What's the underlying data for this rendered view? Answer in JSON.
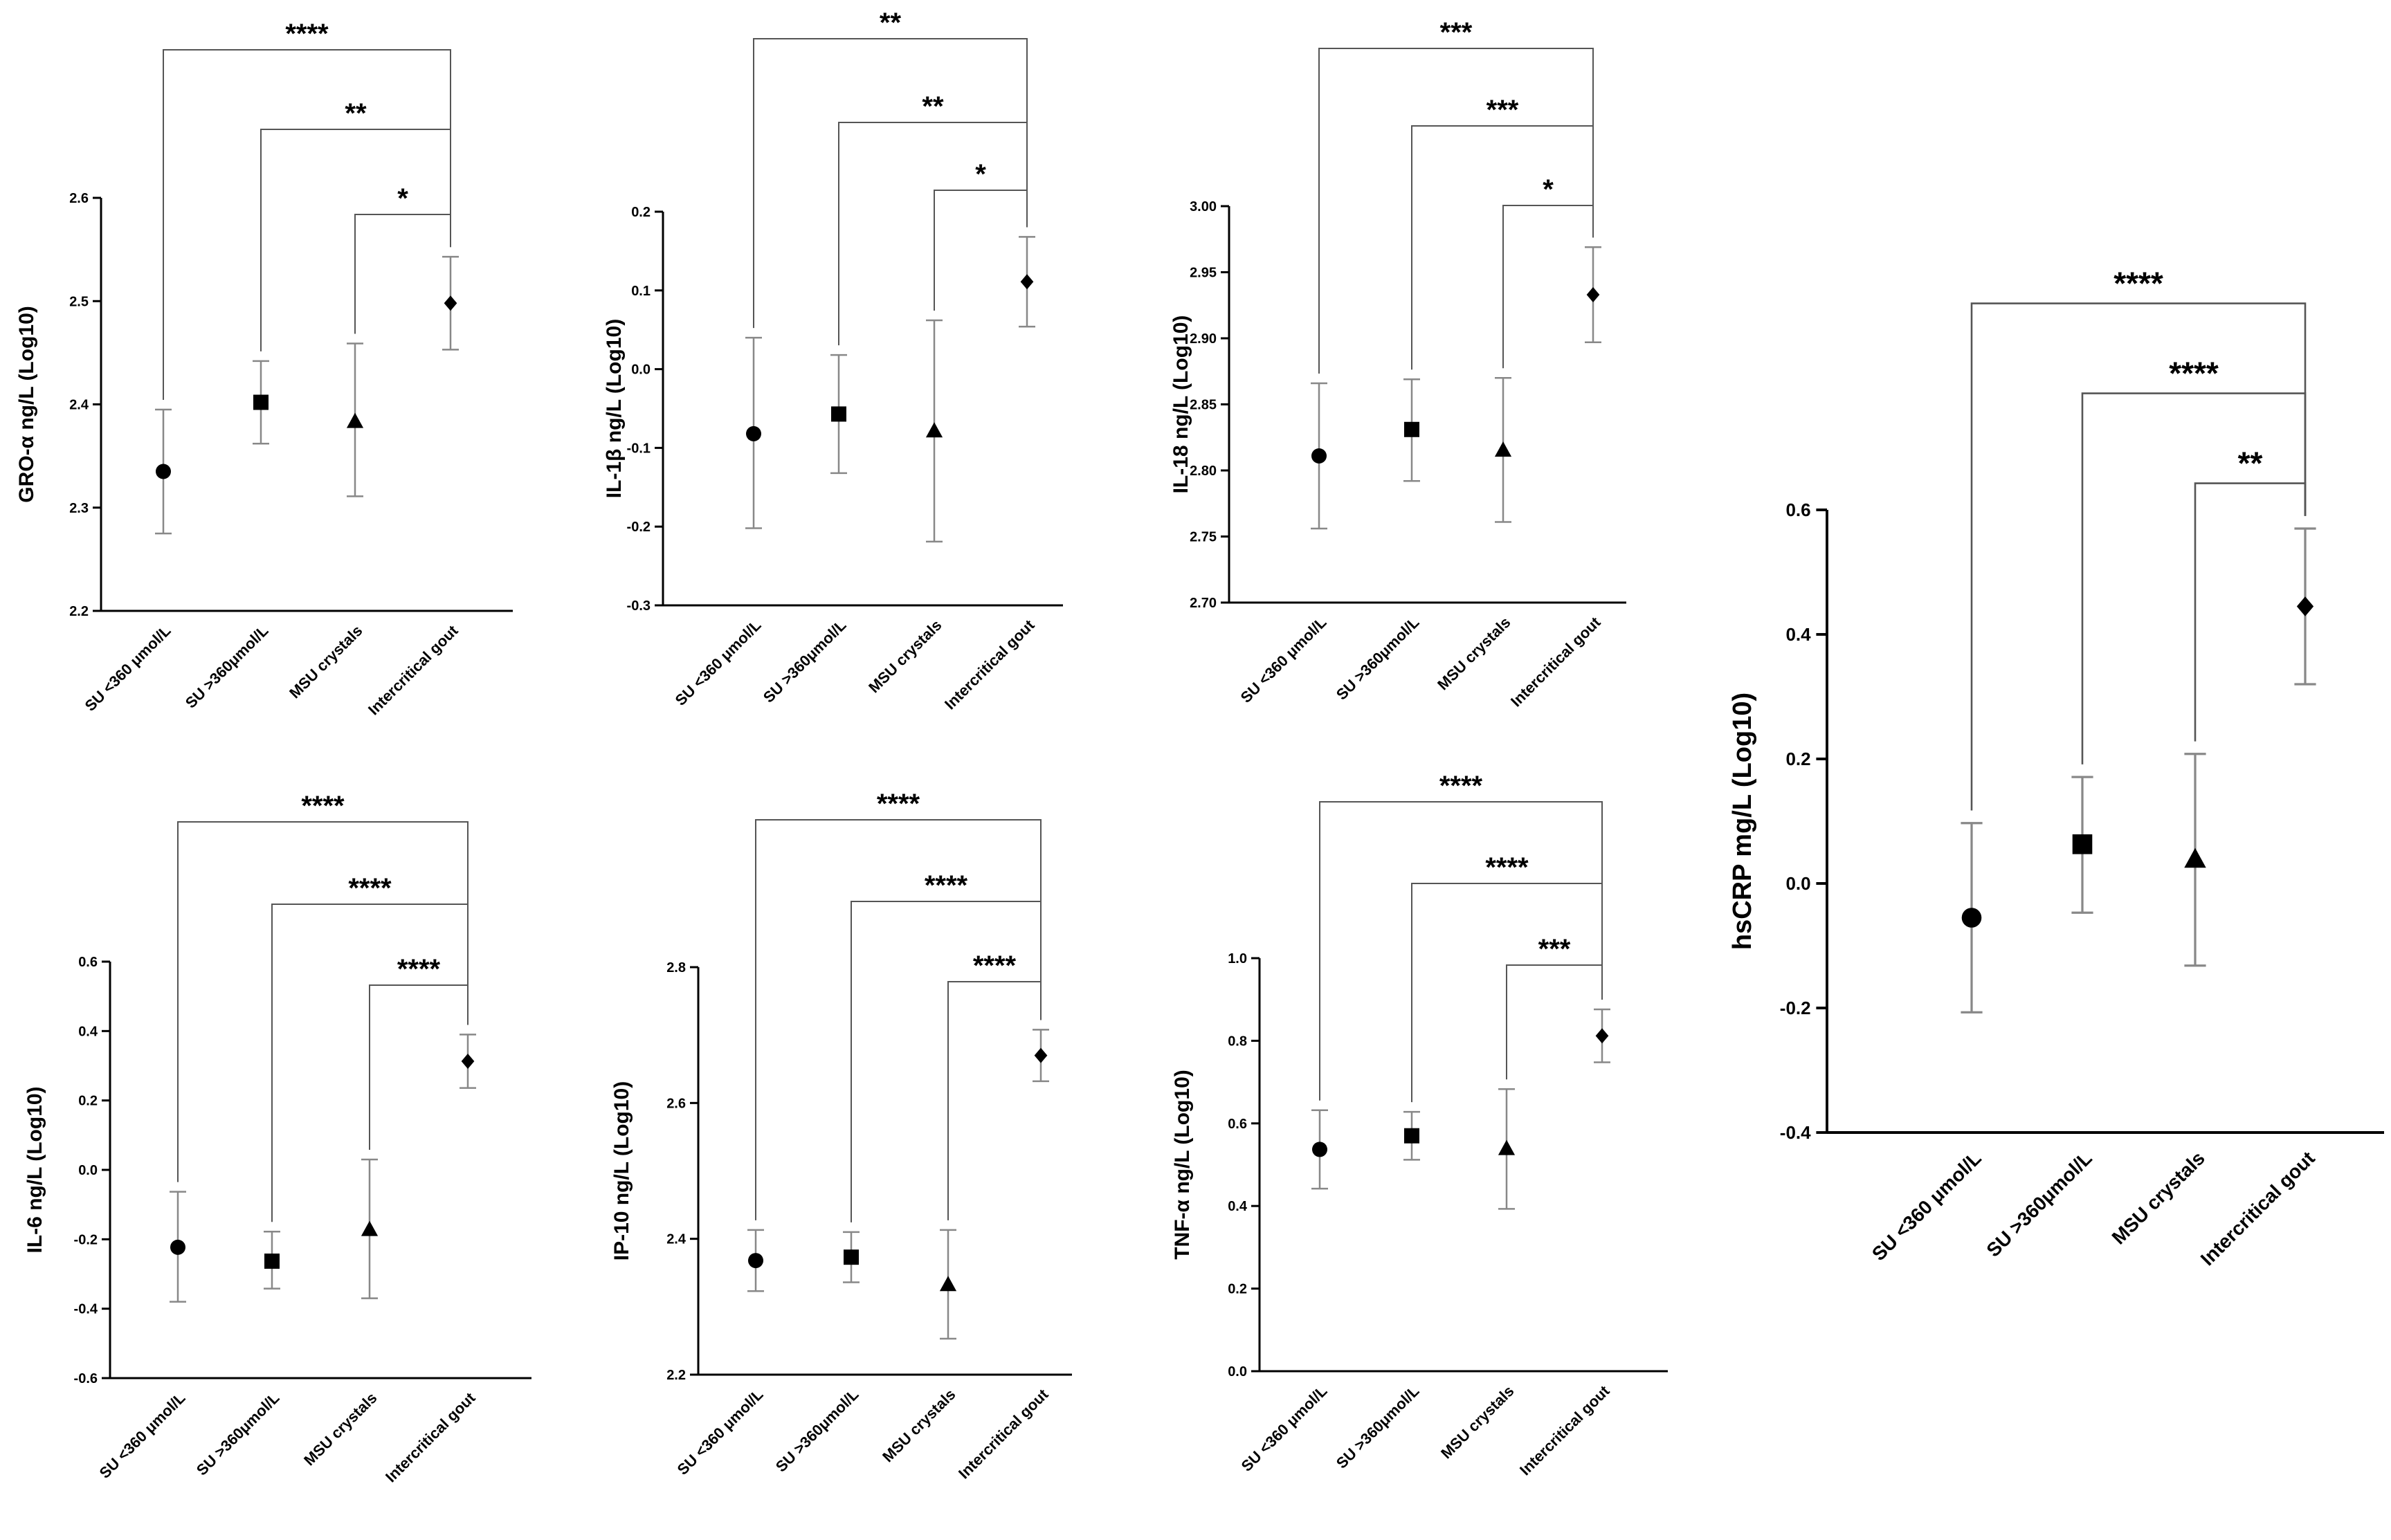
{
  "chart_data": [
    {
      "type": "scatter",
      "id": "gro",
      "ylabel": "GRO-α ng/L (Log10)",
      "categories": [
        "SU <360 μmol/L",
        "SU >360μmol/L",
        "MSU crystals",
        "Intercritical gout"
      ],
      "ylim": [
        2.2,
        2.6
      ],
      "yticks": [
        "2.2",
        "2.3",
        "2.4",
        "2.5",
        "2.6"
      ],
      "markers": [
        "circle",
        "square",
        "triangle",
        "diamond"
      ],
      "mean": [
        2.335,
        2.402,
        2.383,
        2.498
      ],
      "lower": [
        2.275,
        2.362,
        2.311,
        2.453
      ],
      "upper": [
        2.395,
        2.442,
        2.459,
        2.543
      ],
      "comparisons": [
        {
          "from": 0,
          "to": 3,
          "label": "****"
        },
        {
          "from": 1,
          "to": 3,
          "label": "**"
        },
        {
          "from": 2,
          "to": 3,
          "label": "*"
        }
      ]
    },
    {
      "type": "scatter",
      "id": "il1b",
      "ylabel": "IL-1β ng/L (Log10)",
      "categories": [
        "SU <360 μmol/L",
        "SU >360μmol/L",
        "MSU crystals",
        "Intercritical gout"
      ],
      "ylim": [
        -0.3,
        0.2
      ],
      "yticks": [
        "-0.3",
        "-0.2",
        "-0.1",
        "0.0",
        "0.1",
        "0.2"
      ],
      "markers": [
        "circle",
        "square",
        "triangle",
        "diamond"
      ],
      "mean": [
        -0.082,
        -0.057,
        -0.079,
        0.111
      ],
      "lower": [
        -0.202,
        -0.132,
        -0.219,
        0.054
      ],
      "upper": [
        0.04,
        0.018,
        0.062,
        0.168
      ],
      "comparisons": [
        {
          "from": 0,
          "to": 3,
          "label": "**"
        },
        {
          "from": 1,
          "to": 3,
          "label": "**"
        },
        {
          "from": 2,
          "to": 3,
          "label": "*"
        }
      ]
    },
    {
      "type": "scatter",
      "id": "il18",
      "ylabel": "IL-18 ng/L (Log10)",
      "categories": [
        "SU <360 μmol/L",
        "SU >360μmol/L",
        "MSU crystals",
        "Intercritical gout"
      ],
      "ylim": [
        2.7,
        3.0
      ],
      "yticks": [
        "2.70",
        "2.75",
        "2.80",
        "2.85",
        "2.90",
        "2.95",
        "3.00"
      ],
      "markers": [
        "circle",
        "square",
        "triangle",
        "diamond"
      ],
      "mean": [
        2.811,
        2.831,
        2.815,
        2.933
      ],
      "lower": [
        2.756,
        2.792,
        2.761,
        2.897
      ],
      "upper": [
        2.866,
        2.869,
        2.87,
        2.969
      ],
      "comparisons": [
        {
          "from": 0,
          "to": 3,
          "label": "***"
        },
        {
          "from": 1,
          "to": 3,
          "label": "***"
        },
        {
          "from": 2,
          "to": 3,
          "label": "*"
        }
      ]
    },
    {
      "type": "scatter",
      "id": "il6",
      "ylabel": "IL-6 ng/L (Log10)",
      "categories": [
        "SU <360 μmol/L",
        "SU >360μmol/L",
        "MSU crystals",
        "Intercritical gout"
      ],
      "ylim": [
        -0.6,
        0.6
      ],
      "yticks": [
        "-0.6",
        "-0.4",
        "-0.2",
        "0.0",
        "0.2",
        "0.4",
        "0.6"
      ],
      "markers": [
        "circle",
        "square",
        "triangle",
        "diamond"
      ],
      "mean": [
        -0.223,
        -0.263,
        -0.173,
        0.313
      ],
      "lower": [
        -0.38,
        -0.342,
        -0.37,
        0.236
      ],
      "upper": [
        -0.063,
        -0.178,
        0.03,
        0.39
      ],
      "comparisons": [
        {
          "from": 0,
          "to": 3,
          "label": "****"
        },
        {
          "from": 1,
          "to": 3,
          "label": "****"
        },
        {
          "from": 2,
          "to": 3,
          "label": "****"
        }
      ]
    },
    {
      "type": "scatter",
      "id": "ip10",
      "ylabel": "IP-10 ng/L (Log10)",
      "categories": [
        "SU <360 μmol/L",
        "SU >360μmol/L",
        "MSU crystals",
        "Intercritical gout"
      ],
      "ylim": [
        2.2,
        2.8
      ],
      "yticks": [
        "2.2",
        "2.4",
        "2.6",
        "2.8"
      ],
      "markers": [
        "circle",
        "square",
        "triangle",
        "diamond"
      ],
      "mean": [
        2.368,
        2.373,
        2.332,
        2.67
      ],
      "lower": [
        2.323,
        2.336,
        2.253,
        2.632
      ],
      "upper": [
        2.413,
        2.41,
        2.413,
        2.708
      ],
      "comparisons": [
        {
          "from": 0,
          "to": 3,
          "label": "****"
        },
        {
          "from": 1,
          "to": 3,
          "label": "****"
        },
        {
          "from": 2,
          "to": 3,
          "label": "****"
        }
      ]
    },
    {
      "type": "scatter",
      "id": "tnf",
      "ylabel": "TNF-α ng/L (Log10)",
      "categories": [
        "SU <360 μmol/L",
        "SU >360μmol/L",
        "MSU crystals",
        "Intercritical gout"
      ],
      "ylim": [
        0.0,
        1.0
      ],
      "yticks": [
        "0.0",
        "0.2",
        "0.4",
        "0.6",
        "0.8",
        "1.0"
      ],
      "markers": [
        "circle",
        "square",
        "triangle",
        "diamond"
      ],
      "mean": [
        0.537,
        0.57,
        0.538,
        0.812
      ],
      "lower": [
        0.442,
        0.512,
        0.393,
        0.748
      ],
      "upper": [
        0.632,
        0.628,
        0.683,
        0.876
      ],
      "comparisons": [
        {
          "from": 0,
          "to": 3,
          "label": "****"
        },
        {
          "from": 1,
          "to": 3,
          "label": "****"
        },
        {
          "from": 2,
          "to": 3,
          "label": "***"
        }
      ]
    },
    {
      "type": "scatter",
      "id": "hscrp",
      "ylabel": "hsCRP mg/L (Log10)",
      "categories": [
        "SU <360 μmol/L",
        "SU >360μmol/L",
        "MSU crystals",
        "Intercritical gout"
      ],
      "ylim": [
        -0.4,
        0.6
      ],
      "yticks": [
        "-0.4",
        "-0.2",
        "0.0",
        "0.2",
        "0.4",
        "0.6"
      ],
      "markers": [
        "circle",
        "square",
        "triangle",
        "diamond"
      ],
      "mean": [
        -0.055,
        0.063,
        0.038,
        0.445
      ],
      "lower": [
        -0.207,
        -0.047,
        -0.132,
        0.32
      ],
      "upper": [
        0.097,
        0.171,
        0.208,
        0.57
      ],
      "comparisons": [
        {
          "from": 0,
          "to": 3,
          "label": "****"
        },
        {
          "from": 1,
          "to": 3,
          "label": "****"
        },
        {
          "from": 2,
          "to": 3,
          "label": "**"
        }
      ]
    }
  ]
}
